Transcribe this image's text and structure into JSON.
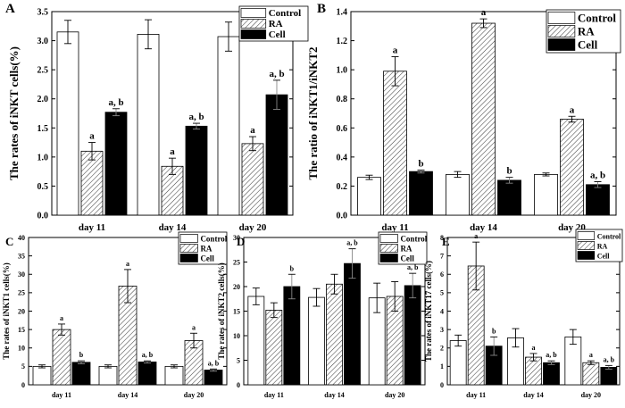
{
  "figure": {
    "legend_labels": [
      "Control",
      "RA",
      "Cell"
    ]
  },
  "chart_data": [
    {
      "panel": "A",
      "type": "bar",
      "categories": [
        "day 11",
        "day 14",
        "day 20"
      ],
      "ylabel": "The rates of iNKT cells(%)",
      "ylim": [
        0,
        3.5
      ],
      "yticks": [
        "0.0",
        "0.5",
        "1.0",
        "1.5",
        "2.0",
        "2.5",
        "3.0",
        "3.5"
      ],
      "legend": "top-right",
      "series": [
        {
          "name": "Control",
          "values": [
            3.15,
            3.11,
            3.07
          ],
          "errors": [
            0.2,
            0.25,
            0.25
          ],
          "labels": [
            "",
            "",
            ""
          ]
        },
        {
          "name": "RA",
          "values": [
            1.1,
            0.84,
            1.23
          ],
          "errors": [
            0.15,
            0.14,
            0.12
          ],
          "labels": [
            "a",
            "a",
            "a"
          ]
        },
        {
          "name": "Cell",
          "values": [
            1.77,
            1.53,
            2.07
          ],
          "errors": [
            0.06,
            0.05,
            0.25
          ],
          "labels": [
            "a, b",
            "a, b",
            "a, b"
          ]
        }
      ]
    },
    {
      "panel": "B",
      "type": "bar",
      "categories": [
        "day 11",
        "day 14",
        "day 20"
      ],
      "ylabel": "The ratio of iNKT1/iNKT2",
      "ylim": [
        0,
        1.4
      ],
      "yticks": [
        "0.0",
        "0.2",
        "0.4",
        "0.6",
        "0.8",
        "1.0",
        "1.2",
        "1.4"
      ],
      "legend": "top-right",
      "series": [
        {
          "name": "Control",
          "values": [
            0.26,
            0.28,
            0.28
          ],
          "errors": [
            0.015,
            0.02,
            0.01
          ],
          "labels": [
            "",
            "",
            ""
          ]
        },
        {
          "name": "RA",
          "values": [
            0.99,
            1.32,
            0.66
          ],
          "errors": [
            0.1,
            0.03,
            0.02
          ],
          "labels": [
            "a",
            "a",
            "a"
          ]
        },
        {
          "name": "Cell",
          "values": [
            0.3,
            0.24,
            0.21
          ],
          "errors": [
            0.01,
            0.02,
            0.02
          ],
          "labels": [
            "b",
            "b",
            "a, b"
          ]
        }
      ]
    },
    {
      "panel": "C",
      "type": "bar",
      "categories": [
        "day 11",
        "day 14",
        "day 20"
      ],
      "ylabel": "The rates of iNKT1 cells(%)",
      "ylim": [
        0,
        40
      ],
      "yticks": [
        "0",
        "5",
        "10",
        "15",
        "20",
        "25",
        "30",
        "35",
        "40"
      ],
      "legend": "top-right",
      "series": [
        {
          "name": "Control",
          "values": [
            5.0,
            5.0,
            5.0
          ],
          "errors": [
            0.4,
            0.4,
            0.4
          ],
          "labels": [
            "",
            "",
            ""
          ]
        },
        {
          "name": "RA",
          "values": [
            15.0,
            26.8,
            12.0
          ],
          "errors": [
            1.5,
            4.5,
            2.0
          ],
          "labels": [
            "a",
            "a",
            "a"
          ]
        },
        {
          "name": "Cell",
          "values": [
            6.1,
            6.2,
            4.0
          ],
          "errors": [
            0.4,
            0.3,
            0.3
          ],
          "labels": [
            "b",
            "a, b",
            "a, b"
          ]
        }
      ]
    },
    {
      "panel": "D",
      "type": "bar",
      "categories": [
        "day 11",
        "day 14",
        "day 20"
      ],
      "ylabel": "The rates of iNKT2 cells(%)",
      "ylim": [
        0,
        30
      ],
      "yticks": [
        "0",
        "5",
        "10",
        "15",
        "20",
        "25",
        "30"
      ],
      "legend": "top-right",
      "series": [
        {
          "name": "Control",
          "values": [
            18.0,
            17.8,
            17.7
          ],
          "errors": [
            1.7,
            1.8,
            3.0
          ],
          "labels": [
            "",
            "",
            ""
          ]
        },
        {
          "name": "RA",
          "values": [
            15.2,
            20.5,
            18.0
          ],
          "errors": [
            1.5,
            2.0,
            3.0
          ],
          "labels": [
            "",
            "",
            ""
          ]
        },
        {
          "name": "Cell",
          "values": [
            20.0,
            24.7,
            20.2
          ],
          "errors": [
            2.5,
            3.0,
            2.5
          ],
          "labels": [
            "b",
            "a, b",
            "a, b"
          ]
        }
      ]
    },
    {
      "panel": "E",
      "type": "bar",
      "categories": [
        "day 11",
        "day 14",
        "day 20"
      ],
      "ylabel": "The rates of iNKT17 cells(%)",
      "ylim": [
        0,
        8
      ],
      "yticks": [
        "0",
        "1",
        "2",
        "3",
        "4",
        "5",
        "6",
        "7",
        "8"
      ],
      "legend": "top-right",
      "series": [
        {
          "name": "Control",
          "values": [
            2.4,
            2.55,
            2.6
          ],
          "errors": [
            0.3,
            0.5,
            0.4
          ],
          "labels": [
            "",
            "",
            ""
          ]
        },
        {
          "name": "RA",
          "values": [
            6.45,
            1.5,
            1.2
          ],
          "errors": [
            1.3,
            0.2,
            0.1
          ],
          "labels": [
            "a",
            "a",
            "a"
          ]
        },
        {
          "name": "Cell",
          "values": [
            2.1,
            1.2,
            0.95
          ],
          "errors": [
            0.5,
            0.1,
            0.1
          ],
          "labels": [
            "b",
            "a, b",
            "a, b"
          ]
        }
      ]
    }
  ]
}
